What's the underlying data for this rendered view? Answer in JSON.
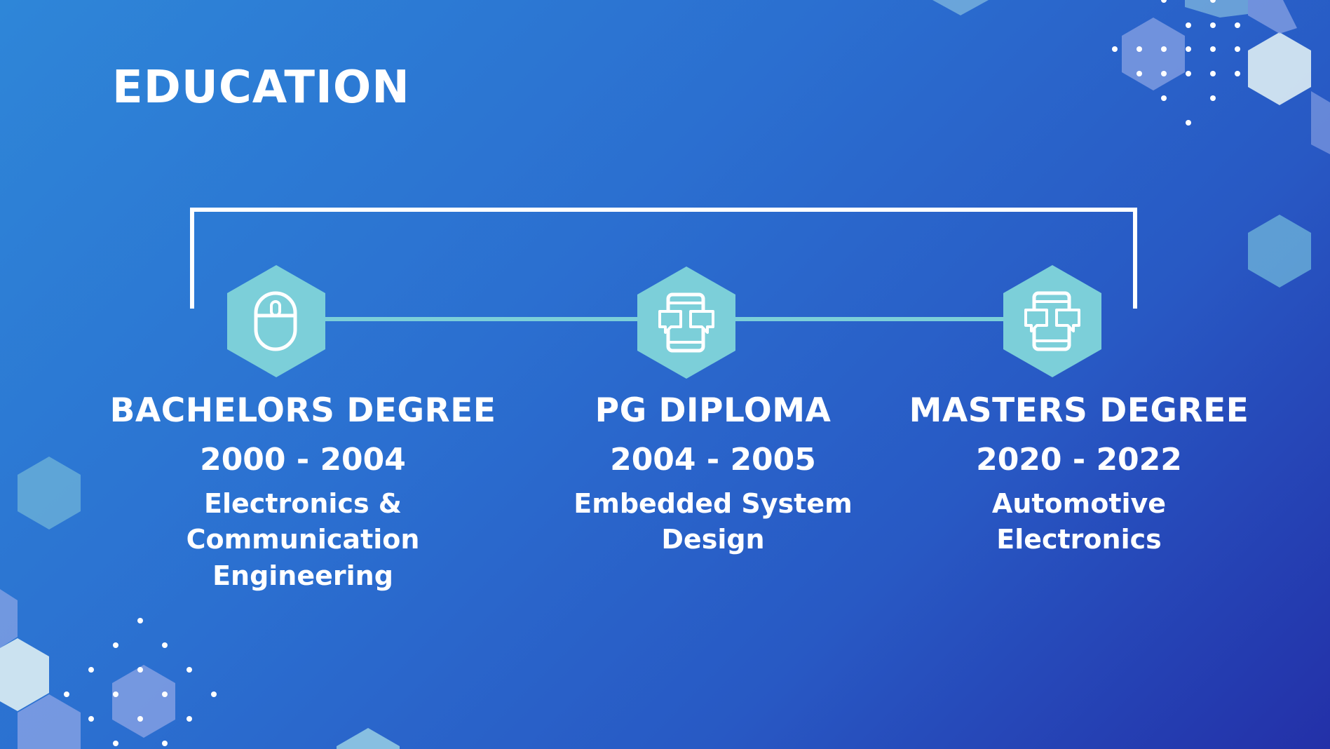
{
  "title": "EDUCATION",
  "colors": {
    "background_start": "#2e86d8",
    "background_end": "#2330a8",
    "hexagon": "#7ccfd9",
    "text": "#ffffff"
  },
  "timeline": [
    {
      "degree": "BACHELORS DEGREE",
      "years": "2000 - 2004",
      "field": "Electronics & Communication Engineering",
      "icon": "computer-mouse-icon"
    },
    {
      "degree": "PG DIPLOMA",
      "years": "2004 - 2005",
      "field": "Embedded System Design",
      "icon": "phone-chat-icon"
    },
    {
      "degree": "MASTERS DEGREE",
      "years": "2020 - 2022",
      "field": "Automotive Electronics",
      "icon": "phone-chat-icon"
    }
  ]
}
